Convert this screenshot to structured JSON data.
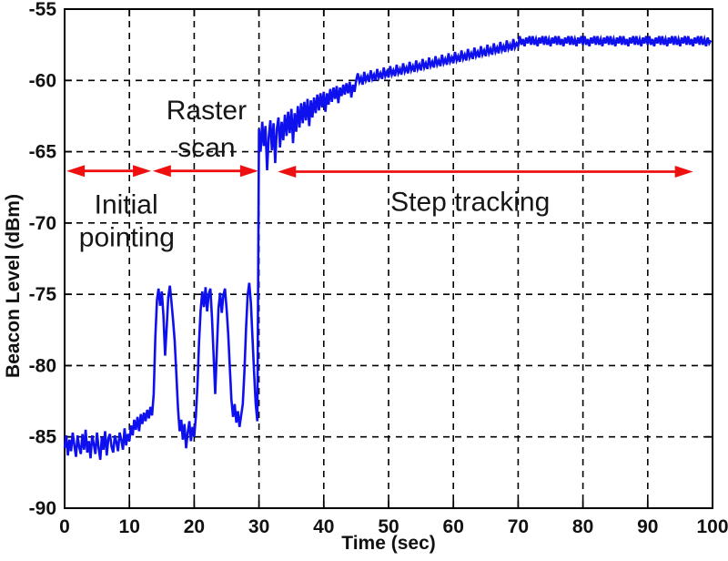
{
  "chart_data": {
    "type": "line",
    "title": "",
    "xlabel": "Time (sec)",
    "ylabel": "Beacon Level (dBm)",
    "xlim": [
      0,
      100
    ],
    "ylim": [
      -90,
      -55
    ],
    "xticks": [
      0,
      10,
      20,
      30,
      40,
      50,
      60,
      70,
      80,
      90,
      100
    ],
    "yticks": [
      -90,
      -85,
      -80,
      -75,
      -70,
      -65,
      -60,
      -55
    ],
    "grid": "dashed",
    "grid_color": "#000000",
    "background": "#ffffff",
    "legend": "none",
    "series": [
      {
        "name": "beacon_level",
        "color": "#0f10ee",
        "t0": 0,
        "dt": 0.25,
        "values": [
          -85.8,
          -84.9,
          -86.3,
          -85.2,
          -86.0,
          -84.7,
          -85.6,
          -86.4,
          -84.9,
          -85.7,
          -86.2,
          -84.8,
          -85.9,
          -84.5,
          -86.1,
          -85.3,
          -86.5,
          -84.9,
          -85.5,
          -86.2,
          -84.7,
          -85.8,
          -86.6,
          -85.0,
          -85.9,
          -84.6,
          -86.3,
          -85.1,
          -84.8,
          -85.7,
          -86.1,
          -84.9,
          -85.4,
          -86.0,
          -84.7,
          -85.2,
          -85.9,
          -84.4,
          -85.6,
          -84.8,
          -85.3,
          -84.2,
          -84.9,
          -83.8,
          -84.5,
          -83.6,
          -84.6,
          -83.4,
          -84.1,
          -83.3,
          -83.9,
          -83.1,
          -83.7,
          -82.9,
          -83.5,
          -82.0,
          -78.0,
          -75.4,
          -74.6,
          -75.8,
          -74.8,
          -76.5,
          -79.3,
          -77.4,
          -75.2,
          -74.4,
          -75.6,
          -76.9,
          -78.3,
          -80.6,
          -83.0,
          -84.6,
          -83.8,
          -85.2,
          -84.1,
          -85.8,
          -84.7,
          -83.9,
          -85.3,
          -84.3,
          -85.0,
          -83.6,
          -81.4,
          -78.4,
          -76.1,
          -74.8,
          -75.9,
          -74.5,
          -76.2,
          -75.0,
          -74.6,
          -76.7,
          -79.4,
          -82.0,
          -78.9,
          -76.0,
          -74.9,
          -76.3,
          -75.1,
          -74.6,
          -76.0,
          -77.8,
          -80.2,
          -82.4,
          -83.6,
          -82.7,
          -84.0,
          -83.2,
          -84.3,
          -83.5,
          -82.7,
          -80.4,
          -77.4,
          -75.1,
          -74.2,
          -75.6,
          -78.1,
          -80.6,
          -82.7,
          -83.9,
          -63.4,
          -65.0,
          -62.9,
          -64.6,
          -63.2,
          -66.3,
          -64.0,
          -62.8,
          -64.9,
          -63.0,
          -65.8,
          -63.4,
          -62.6,
          -64.7,
          -62.9,
          -64.2,
          -62.4,
          -63.9,
          -62.2,
          -63.7,
          -62.0,
          -64.4,
          -62.3,
          -63.6,
          -61.8,
          -63.3,
          -61.6,
          -63.0,
          -61.5,
          -62.8,
          -61.3,
          -63.2,
          -61.4,
          -62.6,
          -61.2,
          -62.3,
          -61.0,
          -62.1,
          -60.9,
          -61.9,
          -60.8,
          -62.2,
          -60.9,
          -61.7,
          -60.6,
          -61.5,
          -60.5,
          -61.3,
          -60.4,
          -61.6,
          -60.5,
          -61.1,
          -60.3,
          -61.0,
          -60.2,
          -60.9,
          -60.1,
          -61.2,
          -60.3,
          -60.8,
          -60.0,
          -59.5,
          -60.1,
          -59.8,
          -60.3,
          -59.4,
          -60.0,
          -59.7,
          -60.1,
          -59.3,
          -59.9,
          -59.6,
          -60.0,
          -59.2,
          -59.8,
          -59.5,
          -59.9,
          -59.1,
          -59.7,
          -59.4,
          -59.8,
          -59.0,
          -59.6,
          -59.3,
          -59.7,
          -58.9,
          -59.5,
          -59.2,
          -59.6,
          -58.8,
          -59.4,
          -59.1,
          -59.5,
          -58.7,
          -59.3,
          -59.0,
          -59.4,
          -58.6,
          -59.2,
          -58.9,
          -59.3,
          -58.5,
          -59.1,
          -58.8,
          -59.2,
          -58.4,
          -59.0,
          -58.7,
          -59.1,
          -58.3,
          -58.9,
          -58.6,
          -59.0,
          -58.2,
          -58.8,
          -58.5,
          -58.9,
          -58.1,
          -58.7,
          -58.4,
          -58.8,
          -58.0,
          -58.6,
          -58.3,
          -58.7,
          -57.9,
          -58.5,
          -58.2,
          -58.6,
          -57.8,
          -58.4,
          -58.1,
          -58.5,
          -57.7,
          -58.3,
          -58.0,
          -58.4,
          -57.6,
          -58.2,
          -57.9,
          -58.3,
          -57.5,
          -58.1,
          -57.8,
          -58.2,
          -57.4,
          -58.0,
          -57.7,
          -58.1,
          -57.3,
          -57.9,
          -57.6,
          -58.0,
          -57.2,
          -57.8,
          -57.5,
          -57.9,
          -57.1,
          -57.7,
          -57.4,
          -57.6,
          -56.9,
          -57.5,
          -57.1,
          -57.6,
          -57.0,
          -57.4,
          -56.9,
          -57.5,
          -56.9,
          -57.5,
          -57.1,
          -57.6,
          -57.0,
          -57.4,
          -56.9,
          -57.5,
          -56.9,
          -57.5,
          -57.1,
          -57.6,
          -57.0,
          -57.4,
          -56.9,
          -57.5,
          -56.9,
          -57.5,
          -57.1,
          -57.6,
          -57.0,
          -57.4,
          -56.9,
          -57.5,
          -56.9,
          -57.5,
          -57.1,
          -57.6,
          -57.0,
          -57.4,
          -56.9,
          -57.5,
          -56.9,
          -57.5,
          -57.1,
          -57.6,
          -57.0,
          -57.4,
          -56.9,
          -57.5,
          -56.9,
          -57.5,
          -57.1,
          -57.6,
          -57.0,
          -57.4,
          -56.9,
          -57.5,
          -56.9,
          -57.5,
          -57.1,
          -57.6,
          -57.0,
          -57.4,
          -56.9,
          -57.5,
          -56.9,
          -57.5,
          -57.1,
          -57.6,
          -57.0,
          -57.4,
          -56.9,
          -57.5,
          -56.9,
          -57.5,
          -57.1,
          -57.6,
          -57.0,
          -57.4,
          -56.9,
          -57.5,
          -56.9,
          -57.5,
          -57.1,
          -57.6,
          -57.0,
          -57.4,
          -56.9,
          -57.5,
          -56.9,
          -57.5,
          -57.1,
          -57.6,
          -57.0,
          -57.4,
          -56.9,
          -57.5,
          -56.9,
          -57.5,
          -57.1,
          -57.6,
          -57.0,
          -57.4,
          -56.9,
          -57.5,
          -56.9,
          -57.5,
          -57.1,
          -57.6,
          -57.0,
          -57.4,
          -56.9,
          -57.5,
          -56.9,
          -57.5,
          -57.1,
          -57.6,
          -57.0,
          -57.4,
          -57.2
        ]
      }
    ],
    "phases": [
      {
        "label": "Initial pointing",
        "label_lines": [
          {
            "text": "Initial",
            "t": 9.5,
            "v": -68.7
          },
          {
            "text": "pointing",
            "t": 9.6,
            "v": -71.0
          }
        ],
        "arrow": {
          "t1": 0.3,
          "t2": 13.35,
          "v": -66.35
        }
      },
      {
        "label": "Raster scan",
        "label_lines": [
          {
            "text": "Raster",
            "t": 21.9,
            "v": -62.1
          },
          {
            "text": "scan",
            "t": 21.9,
            "v": -64.7
          }
        ],
        "arrow": {
          "t1": 13.6,
          "t2": 29.9,
          "v": -66.35
        }
      },
      {
        "label": "Step tracking",
        "label_lines": [
          {
            "text": "Step tracking",
            "t": 62.6,
            "v": -68.5
          }
        ],
        "arrow": {
          "t1": 32.9,
          "t2": 97.0,
          "v": -66.4
        }
      }
    ],
    "arrow_color": "#ee1010"
  }
}
